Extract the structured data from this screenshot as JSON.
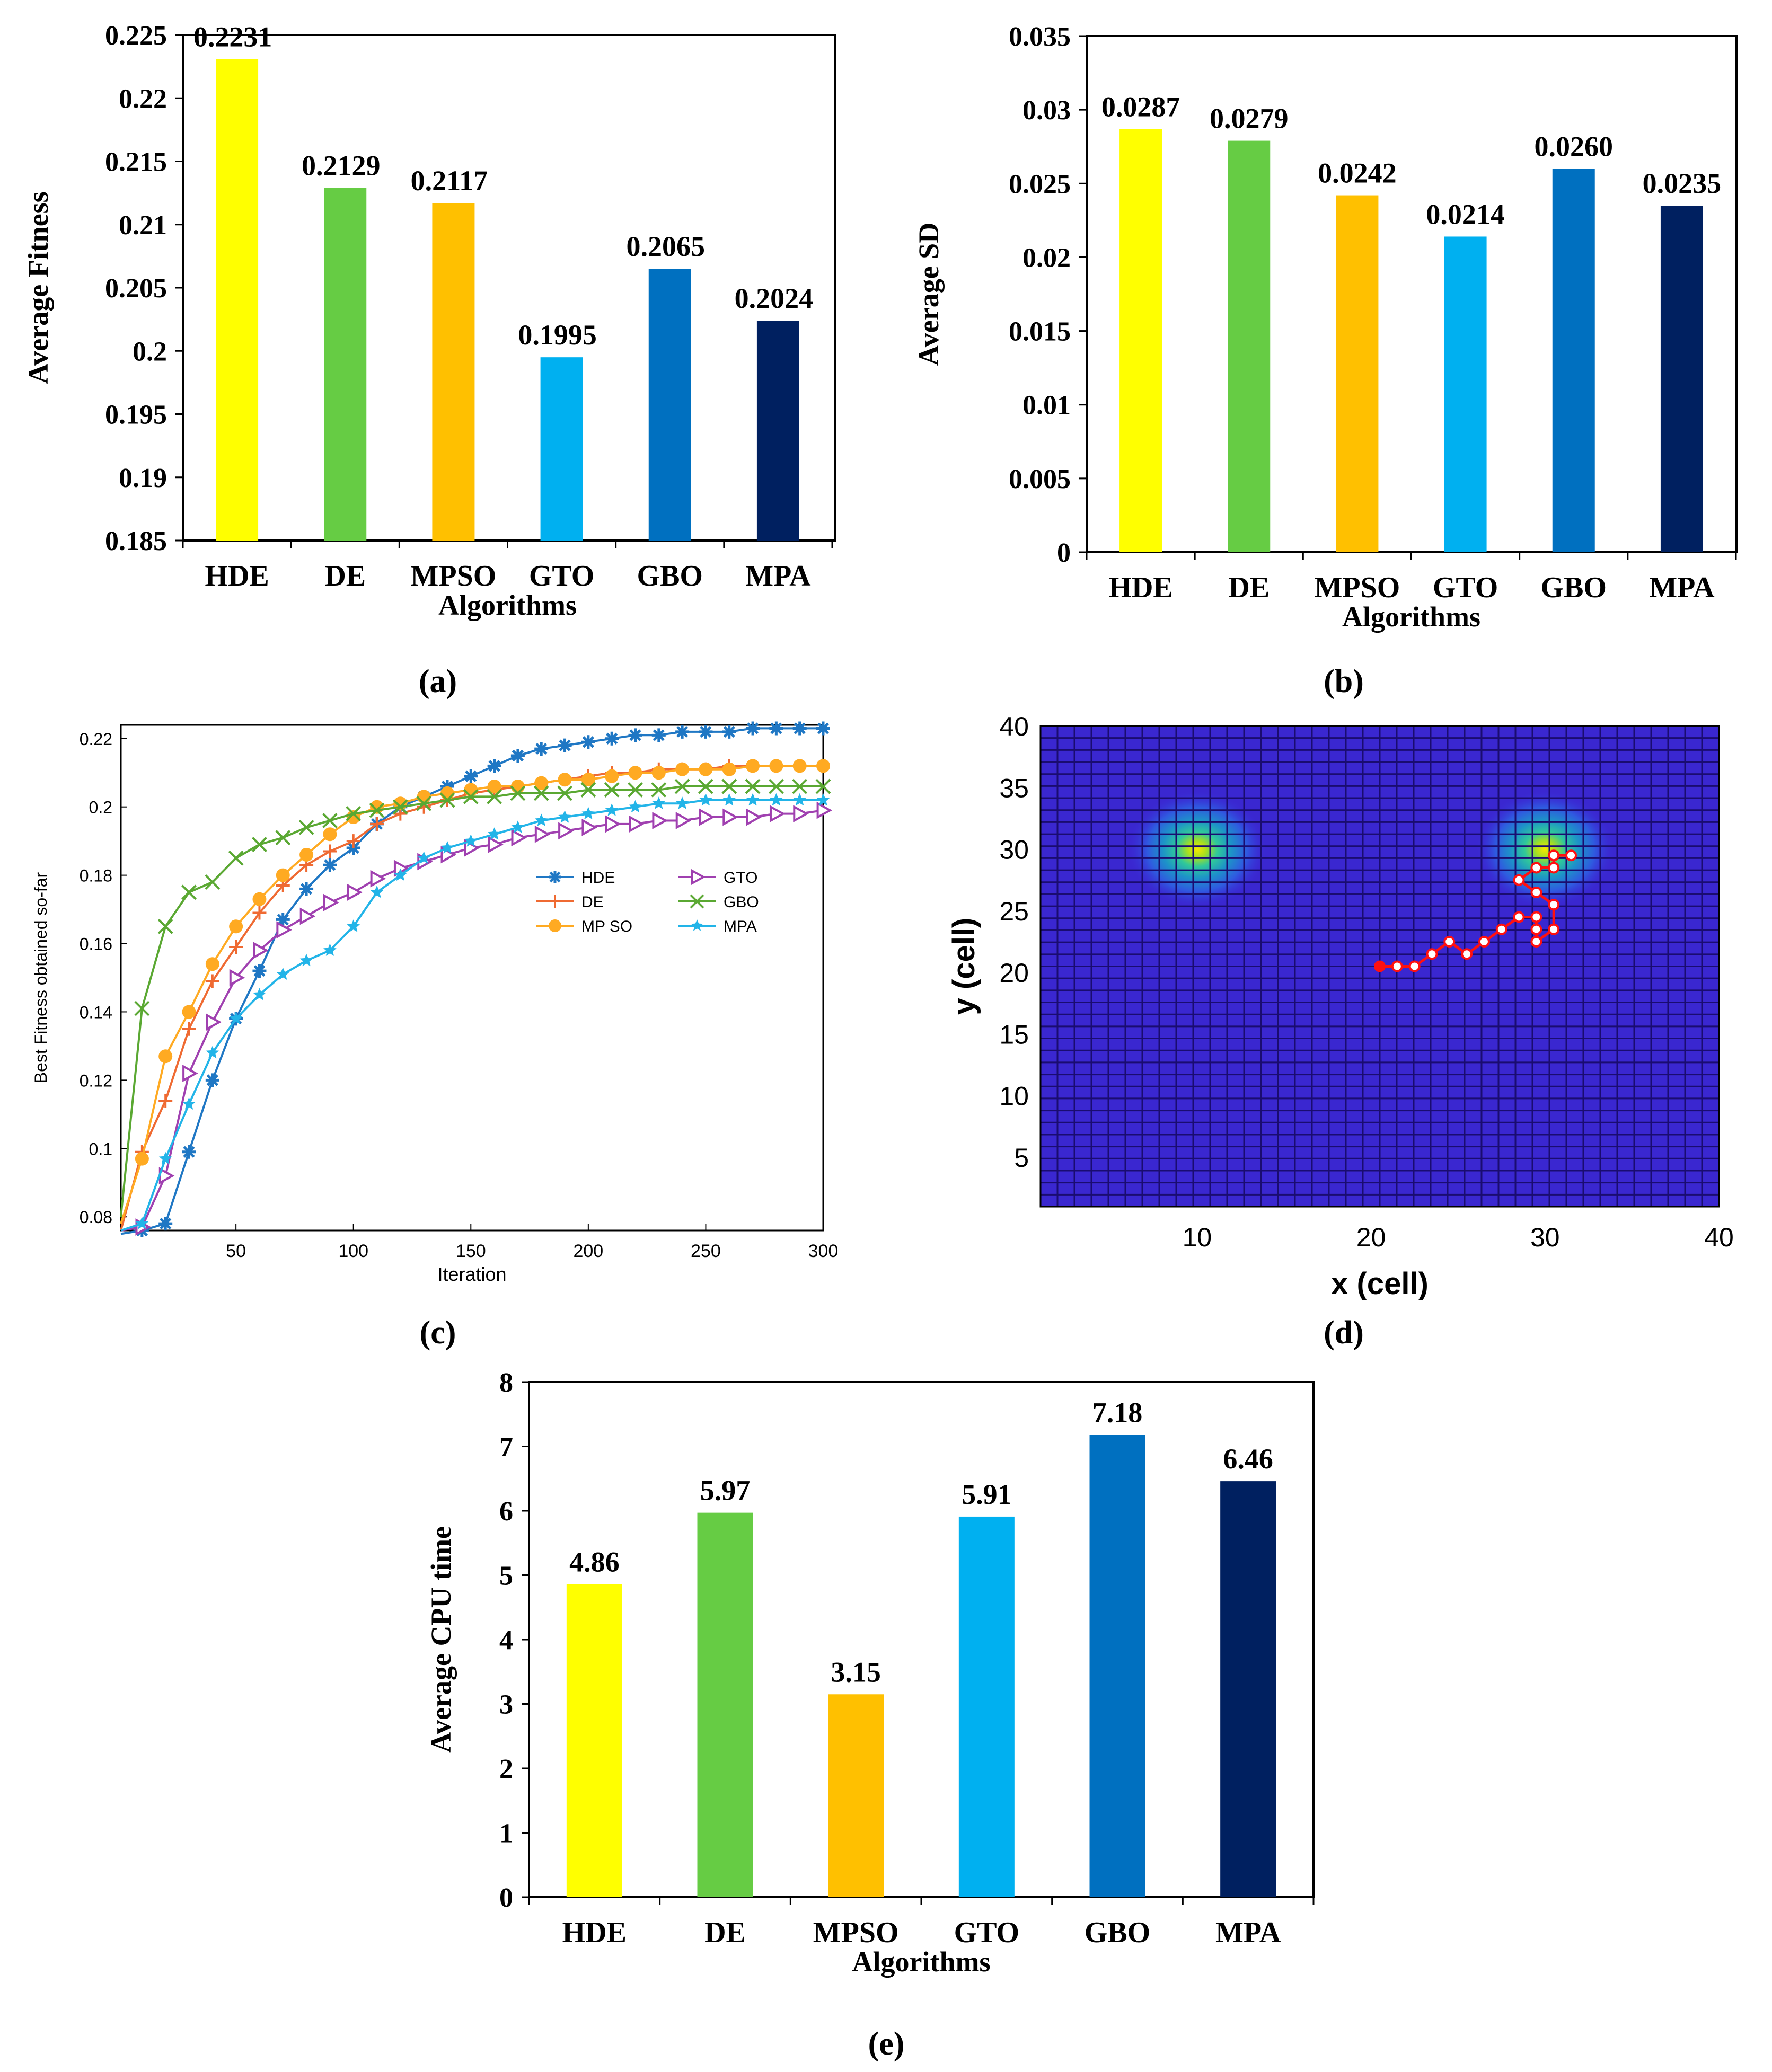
{
  "chart_data": [
    {
      "panel": "(a)",
      "type": "bar",
      "categories": [
        "HDE",
        "DE",
        "MPSO",
        "GTO",
        "GBO",
        "MPA"
      ],
      "values": [
        0.2231,
        0.2129,
        0.2117,
        0.1995,
        0.2065,
        0.2024
      ],
      "data_labels": [
        "0.2231",
        "0.2129",
        "0.2117",
        "0.1995",
        "0.2065",
        "0.2024"
      ],
      "colors": [
        "#ffff00",
        "#66cc44",
        "#ffc000",
        "#00b0f0",
        "#0070c0",
        "#002060"
      ],
      "ylim": [
        0.185,
        0.225
      ],
      "yticks": [
        "0.185",
        "0.19",
        "0.195",
        "0.2",
        "0.205",
        "0.21",
        "0.215",
        "0.22",
        "0.225"
      ],
      "xlabel": "Algorithms",
      "ylabel": "Average Fitness",
      "title": ""
    },
    {
      "panel": "(b)",
      "type": "bar",
      "categories": [
        "HDE",
        "DE",
        "MPSO",
        "GTO",
        "GBO",
        "MPA"
      ],
      "values": [
        0.0287,
        0.0279,
        0.0242,
        0.0214,
        0.026,
        0.0235
      ],
      "data_labels": [
        "0.0287",
        "0.0279",
        "0.0242",
        "0.0214",
        "0.0260",
        "0.0235"
      ],
      "colors": [
        "#ffff00",
        "#66cc44",
        "#ffc000",
        "#00b0f0",
        "#0070c0",
        "#002060"
      ],
      "ylim": [
        0,
        0.035
      ],
      "yticks": [
        "0",
        "0.005",
        "0.01",
        "0.015",
        "0.02",
        "0.025",
        "0.03",
        "0.035"
      ],
      "xlabel": "Algorithms",
      "ylabel": "Average SD",
      "title": ""
    },
    {
      "panel": "(c)",
      "type": "line",
      "x": [
        1,
        10,
        20,
        30,
        40,
        50,
        60,
        70,
        80,
        90,
        100,
        110,
        120,
        130,
        140,
        150,
        160,
        170,
        180,
        190,
        200,
        210,
        220,
        230,
        240,
        250,
        260,
        270,
        280,
        290,
        300
      ],
      "series": [
        {
          "name": "HDE",
          "color": "#1f77c4",
          "marker": "asterisk",
          "values": [
            0.075,
            0.076,
            0.078,
            0.099,
            0.12,
            0.138,
            0.152,
            0.167,
            0.176,
            0.183,
            0.188,
            0.195,
            0.2,
            0.203,
            0.206,
            0.209,
            0.212,
            0.215,
            0.217,
            0.218,
            0.219,
            0.22,
            0.221,
            0.221,
            0.222,
            0.222,
            0.222,
            0.223,
            0.223,
            0.223,
            0.223
          ]
        },
        {
          "name": "DE",
          "color": "#ef6a32",
          "marker": "plus",
          "values": [
            0.076,
            0.099,
            0.114,
            0.135,
            0.149,
            0.159,
            0.169,
            0.177,
            0.183,
            0.187,
            0.19,
            0.195,
            0.198,
            0.2,
            0.202,
            0.204,
            0.205,
            0.206,
            0.207,
            0.208,
            0.209,
            0.21,
            0.21,
            0.211,
            0.211,
            0.211,
            0.212,
            0.212,
            0.212,
            0.212,
            0.212
          ]
        },
        {
          "name": "MPSO",
          "color": "#ffaa22",
          "marker": "circle",
          "values": [
            0.078,
            0.097,
            0.127,
            0.14,
            0.154,
            0.165,
            0.173,
            0.18,
            0.186,
            0.192,
            0.197,
            0.2,
            0.201,
            0.203,
            0.204,
            0.205,
            0.206,
            0.206,
            0.207,
            0.208,
            0.208,
            0.209,
            0.21,
            0.21,
            0.211,
            0.211,
            0.211,
            0.212,
            0.212,
            0.212,
            0.212
          ]
        },
        {
          "name": "GTO",
          "color": "#a040b0",
          "marker": "triangle-right",
          "values": [
            0.076,
            0.077,
            0.092,
            0.122,
            0.137,
            0.15,
            0.158,
            0.164,
            0.168,
            0.172,
            0.175,
            0.179,
            0.182,
            0.184,
            0.186,
            0.188,
            0.189,
            0.191,
            0.192,
            0.193,
            0.194,
            0.195,
            0.195,
            0.196,
            0.196,
            0.197,
            0.197,
            0.197,
            0.198,
            0.198,
            0.199
          ]
        },
        {
          "name": "GBO",
          "color": "#5aa832",
          "marker": "x",
          "values": [
            0.08,
            0.141,
            0.165,
            0.175,
            0.178,
            0.185,
            0.189,
            0.191,
            0.194,
            0.196,
            0.198,
            0.199,
            0.2,
            0.201,
            0.202,
            0.203,
            0.203,
            0.204,
            0.204,
            0.204,
            0.205,
            0.205,
            0.205,
            0.205,
            0.206,
            0.206,
            0.206,
            0.206,
            0.206,
            0.206,
            0.206
          ]
        },
        {
          "name": "MPA",
          "color": "#22b4e8",
          "marker": "star",
          "values": [
            0.076,
            0.078,
            0.097,
            0.113,
            0.128,
            0.138,
            0.145,
            0.151,
            0.155,
            0.158,
            0.165,
            0.175,
            0.18,
            0.185,
            0.188,
            0.19,
            0.192,
            0.194,
            0.196,
            0.197,
            0.198,
            0.199,
            0.2,
            0.201,
            0.201,
            0.202,
            0.202,
            0.202,
            0.202,
            0.202,
            0.202
          ]
        }
      ],
      "xlim": [
        1,
        300
      ],
      "ylim": [
        0.076,
        0.224
      ],
      "xticks": [
        "50",
        "100",
        "150",
        "200",
        "250",
        "300"
      ],
      "yticks": [
        "0.08",
        "0.1",
        "0.12",
        "0.14",
        "0.16",
        "0.18",
        "0.2",
        "0.22"
      ],
      "xlabel": "Iteration",
      "ylabel": "Best Fitness obtained so-far",
      "legend_labels": [
        "HDE",
        "GTO",
        "DE",
        "GBO",
        "MP SO",
        "MPA"
      ],
      "legend_position": "right-middle",
      "title": ""
    },
    {
      "panel": "(d)",
      "type": "heatmap",
      "grid_size": [
        40,
        40
      ],
      "peaks": [
        {
          "x": 10,
          "y": 30
        },
        {
          "x": 30,
          "y": 30
        }
      ],
      "path": [
        [
          20.5,
          20.5
        ],
        [
          21.5,
          20.5
        ],
        [
          22.5,
          20.5
        ],
        [
          23.5,
          21.5
        ],
        [
          24.5,
          22.5
        ],
        [
          25.5,
          21.5
        ],
        [
          26.5,
          22.5
        ],
        [
          27.5,
          23.5
        ],
        [
          28.5,
          24.5
        ],
        [
          29.5,
          24.5
        ],
        [
          29.5,
          23.5
        ],
        [
          29.5,
          22.5
        ],
        [
          30.5,
          23.5
        ],
        [
          30.5,
          25.5
        ],
        [
          29.5,
          26.5
        ],
        [
          28.5,
          27.5
        ],
        [
          29.5,
          28.5
        ],
        [
          30.5,
          28.5
        ],
        [
          30.5,
          29.5
        ],
        [
          31.5,
          29.5
        ]
      ],
      "path_color": "#ff1010",
      "xlim": [
        1,
        40
      ],
      "ylim": [
        1,
        40
      ],
      "xticks": [
        "10",
        "20",
        "30",
        "40"
      ],
      "yticks": [
        "5",
        "10",
        "15",
        "20",
        "25",
        "30",
        "35",
        "40"
      ],
      "xlabel": "x (cell)",
      "ylabel": "y (cell)",
      "title": ""
    },
    {
      "panel": "(e)",
      "type": "bar",
      "categories": [
        "HDE",
        "DE",
        "MPSO",
        "GTO",
        "GBO",
        "MPA"
      ],
      "values": [
        4.86,
        5.97,
        3.15,
        5.91,
        7.18,
        6.46
      ],
      "data_labels": [
        "4.86",
        "5.97",
        "3.15",
        "5.91",
        "7.18",
        "6.46"
      ],
      "colors": [
        "#ffff00",
        "#66cc44",
        "#ffc000",
        "#00b0f0",
        "#0070c0",
        "#002060"
      ],
      "ylim": [
        0,
        8
      ],
      "yticks": [
        "0",
        "1",
        "2",
        "3",
        "4",
        "5",
        "6",
        "7",
        "8"
      ],
      "xlabel": "Algorithms",
      "ylabel": "Average CPU time",
      "title": ""
    }
  ],
  "captions": [
    "(a)",
    "(b)",
    "(c)",
    "(d)",
    "(e)"
  ]
}
